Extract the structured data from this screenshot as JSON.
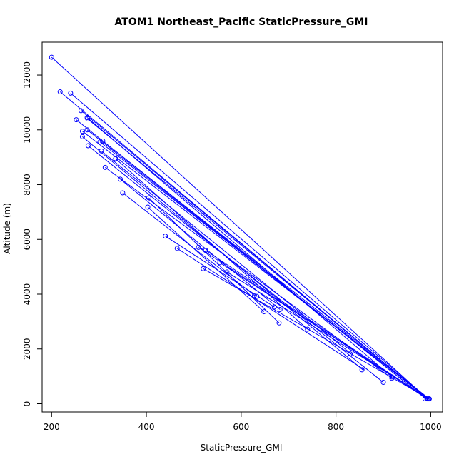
{
  "chart_data": {
    "type": "scatter",
    "title": "ATOM1 Northeast_Pacific StaticPressure_GMI",
    "xlabel": "StaticPressure_GMI",
    "ylabel": "Altitude (m)",
    "xlim": [
      180,
      1025
    ],
    "ylim": [
      -300,
      13200
    ],
    "x_ticks": [
      200,
      400,
      600,
      800,
      1000
    ],
    "y_ticks": [
      0,
      2000,
      4000,
      6000,
      8000,
      10000,
      12000
    ],
    "x_tick_labels": [
      "200",
      "400",
      "600",
      "800",
      "1000"
    ],
    "y_tick_labels": [
      "0",
      "2000",
      "4000",
      "6000",
      "8000",
      "10000",
      "12000"
    ],
    "grid": false,
    "color": "#0000ff",
    "lines": [
      [
        [
          200,
          12650
        ],
        [
          993,
          180
        ]
      ],
      [
        [
          218,
          11390
        ],
        [
          992,
          180
        ]
      ],
      [
        [
          240,
          11340
        ],
        [
          995,
          180
        ]
      ],
      [
        [
          252,
          10370
        ],
        [
          990,
          180
        ]
      ],
      [
        [
          262,
          10700
        ],
        [
          993,
          180
        ]
      ],
      [
        [
          265,
          9950
        ],
        [
          996,
          180
        ]
      ],
      [
        [
          275,
          10450
        ],
        [
          918,
          980
        ]
      ],
      [
        [
          275,
          10000
        ],
        [
          990,
          180
        ]
      ],
      [
        [
          276,
          10400
        ],
        [
          994,
          180
        ]
      ],
      [
        [
          265,
          9750
        ],
        [
          858,
          1220
        ]
      ],
      [
        [
          277,
          9420
        ],
        [
          900,
          780
        ]
      ],
      [
        [
          302,
          9560
        ],
        [
          995,
          180
        ]
      ],
      [
        [
          305,
          9230
        ],
        [
          832,
          1820
        ]
      ],
      [
        [
          308,
          9590
        ],
        [
          997,
          180
        ]
      ],
      [
        [
          313,
          8630
        ],
        [
          918,
          930
        ]
      ],
      [
        [
          335,
          8950
        ],
        [
          740,
          2720
        ]
      ],
      [
        [
          345,
          8200
        ],
        [
          682,
          3440
        ]
      ],
      [
        [
          350,
          7700
        ],
        [
          630,
          3930
        ]
      ],
      [
        [
          403,
          7180
        ],
        [
          648,
          3360
        ]
      ],
      [
        [
          405,
          7520
        ],
        [
          680,
          2950
        ]
      ],
      [
        [
          440,
          6120
        ],
        [
          670,
          3530
        ]
      ],
      [
        [
          465,
          5670
        ],
        [
          860,
          1240
        ]
      ],
      [
        [
          510,
          5710
        ],
        [
          992,
          180
        ]
      ],
      [
        [
          520,
          4930
        ],
        [
          996,
          180
        ]
      ],
      [
        [
          525,
          5600
        ],
        [
          994,
          180
        ]
      ],
      [
        [
          555,
          5150
        ],
        [
          993,
          180
        ]
      ],
      [
        [
          570,
          4810
        ],
        [
          995,
          180
        ]
      ]
    ],
    "points": [
      [
        200,
        12650
      ],
      [
        218,
        11390
      ],
      [
        240,
        11340
      ],
      [
        252,
        10370
      ],
      [
        262,
        10700
      ],
      [
        265,
        9950
      ],
      [
        265,
        9750
      ],
      [
        275,
        10450
      ],
      [
        275,
        10000
      ],
      [
        276,
        10400
      ],
      [
        277,
        9420
      ],
      [
        302,
        9560
      ],
      [
        305,
        9230
      ],
      [
        308,
        9590
      ],
      [
        313,
        8630
      ],
      [
        335,
        8950
      ],
      [
        345,
        8200
      ],
      [
        350,
        7700
      ],
      [
        403,
        7180
      ],
      [
        405,
        7520
      ],
      [
        440,
        6120
      ],
      [
        465,
        5670
      ],
      [
        510,
        5710
      ],
      [
        520,
        4930
      ],
      [
        525,
        5600
      ],
      [
        555,
        5150
      ],
      [
        570,
        4810
      ],
      [
        628,
        3950
      ],
      [
        633,
        3920
      ],
      [
        648,
        3360
      ],
      [
        670,
        3530
      ],
      [
        680,
        2950
      ],
      [
        682,
        3440
      ],
      [
        740,
        2720
      ],
      [
        830,
        1820
      ],
      [
        855,
        1240
      ],
      [
        900,
        780
      ],
      [
        918,
        980
      ],
      [
        918,
        930
      ],
      [
        988,
        180
      ],
      [
        992,
        180
      ],
      [
        994,
        180
      ],
      [
        996,
        180
      ],
      [
        997,
        180
      ]
    ]
  }
}
